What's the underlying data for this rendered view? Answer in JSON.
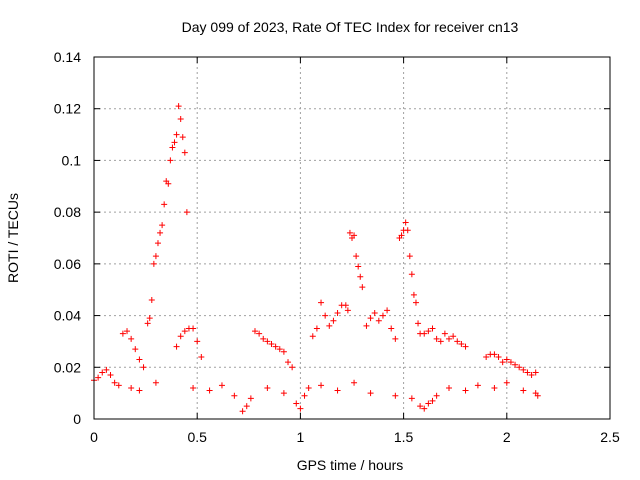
{
  "chart_data": {
    "type": "scatter",
    "title": "Day 099 of 2023, Rate Of TEC Index for receiver cn13",
    "xlabel": "GPS time / hours",
    "ylabel": "ROTI / TECUs",
    "xlim": [
      0,
      2.5
    ],
    "ylim": [
      0,
      0.14
    ],
    "grid": true,
    "marker": "+",
    "color": "#ff0000",
    "x_ticks": [
      0,
      0.5,
      1,
      1.5,
      2,
      2.5
    ],
    "x_tick_labels": [
      "0",
      "0.5",
      "1",
      "1.5",
      "2",
      "2.5"
    ],
    "y_ticks": [
      0,
      0.02,
      0.04,
      0.06,
      0.08,
      0.1,
      0.12,
      0.14
    ],
    "y_tick_labels": [
      "0",
      "0.02",
      "0.04",
      "0.06",
      "0.08",
      "0.1",
      "0.12",
      "0.14"
    ],
    "series": [
      {
        "name": "ROTI",
        "x": [
          0.26,
          0.27,
          0.28,
          0.29,
          0.3,
          0.31,
          0.32,
          0.33,
          0.34,
          0.35,
          0.36,
          0.37,
          0.38,
          0.39,
          0.4,
          0.41,
          0.42,
          0.43,
          0.44,
          0.45,
          1.22,
          1.23,
          1.24,
          1.25,
          1.26,
          1.27,
          1.28,
          1.29,
          1.3,
          1.48,
          1.49,
          1.5,
          1.51,
          1.52,
          1.53,
          1.54,
          1.55,
          1.56,
          1.57,
          1.58,
          0.14,
          0.16,
          0.18,
          0.2,
          0.22,
          0.24,
          0.4,
          0.42,
          0.44,
          0.46,
          0.48,
          0.5,
          0.52,
          0.78,
          0.8,
          0.82,
          0.84,
          0.86,
          0.88,
          0.9,
          0.92,
          0.94,
          0.96,
          1.06,
          1.08,
          1.1,
          1.12,
          1.14,
          1.16,
          1.18,
          1.2,
          1.32,
          1.34,
          1.36,
          1.38,
          1.4,
          1.42,
          1.44,
          1.46,
          1.6,
          1.62,
          1.64,
          1.66,
          1.68,
          1.7,
          1.72,
          1.74,
          1.76,
          1.78,
          1.8,
          1.9,
          1.92,
          1.94,
          1.96,
          1.98,
          2.0,
          2.02,
          2.04,
          2.06,
          2.08,
          2.1,
          2.12,
          2.14,
          0.0,
          0.02,
          0.04,
          0.06,
          0.08,
          0.1,
          0.12,
          0.18,
          0.22,
          0.3,
          0.48,
          0.56,
          0.62,
          0.68,
          0.72,
          0.74,
          0.76,
          0.84,
          0.92,
          0.98,
          1.0,
          1.02,
          1.04,
          1.1,
          1.18,
          1.26,
          1.34,
          1.46,
          1.54,
          1.58,
          1.6,
          1.62,
          1.64,
          1.66,
          1.72,
          1.8,
          1.86,
          1.94,
          2.0,
          2.08,
          2.14,
          2.15
        ],
        "y": [
          0.037,
          0.039,
          0.046,
          0.06,
          0.063,
          0.068,
          0.072,
          0.075,
          0.083,
          0.092,
          0.091,
          0.1,
          0.105,
          0.107,
          0.11,
          0.121,
          0.116,
          0.109,
          0.103,
          0.08,
          0.044,
          0.042,
          0.072,
          0.07,
          0.071,
          0.063,
          0.059,
          0.055,
          0.051,
          0.07,
          0.071,
          0.073,
          0.076,
          0.073,
          0.063,
          0.056,
          0.048,
          0.045,
          0.037,
          0.033,
          0.033,
          0.034,
          0.031,
          0.027,
          0.023,
          0.02,
          0.028,
          0.032,
          0.034,
          0.035,
          0.035,
          0.03,
          0.024,
          0.034,
          0.033,
          0.031,
          0.03,
          0.029,
          0.028,
          0.027,
          0.026,
          0.022,
          0.02,
          0.032,
          0.035,
          0.045,
          0.04,
          0.036,
          0.038,
          0.041,
          0.044,
          0.036,
          0.039,
          0.041,
          0.038,
          0.04,
          0.042,
          0.035,
          0.031,
          0.033,
          0.034,
          0.035,
          0.031,
          0.03,
          0.033,
          0.031,
          0.032,
          0.03,
          0.029,
          0.028,
          0.024,
          0.025,
          0.025,
          0.024,
          0.022,
          0.023,
          0.022,
          0.021,
          0.02,
          0.019,
          0.018,
          0.017,
          0.018,
          0.015,
          0.016,
          0.018,
          0.019,
          0.017,
          0.014,
          0.013,
          0.012,
          0.011,
          0.014,
          0.012,
          0.011,
          0.013,
          0.009,
          0.003,
          0.005,
          0.008,
          0.012,
          0.01,
          0.006,
          0.004,
          0.009,
          0.012,
          0.013,
          0.011,
          0.014,
          0.01,
          0.009,
          0.008,
          0.005,
          0.004,
          0.006,
          0.007,
          0.009,
          0.012,
          0.011,
          0.013,
          0.012,
          0.014,
          0.011,
          0.01,
          0.009
        ]
      }
    ]
  }
}
